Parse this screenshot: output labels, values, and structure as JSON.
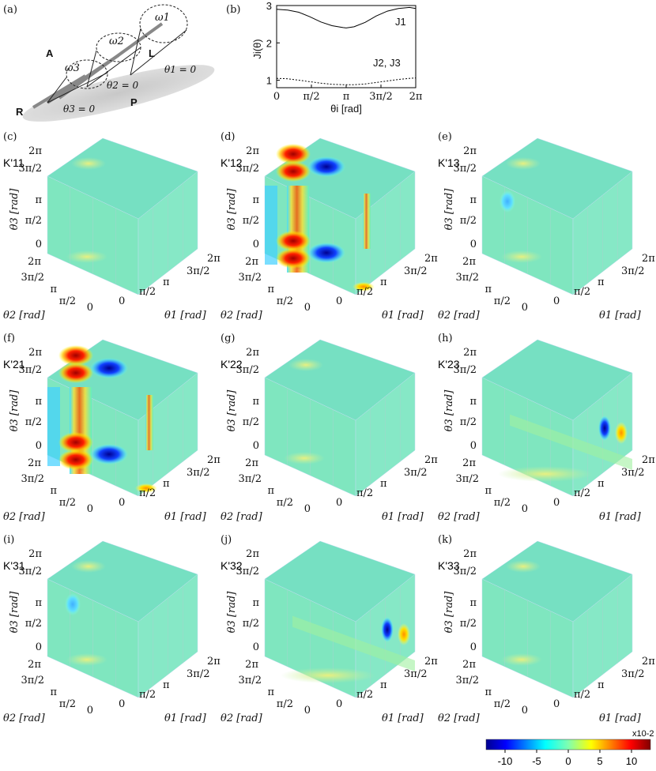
{
  "panel_a": {
    "letter": "(a)",
    "omegas": [
      "ω1",
      "ω2",
      "ω3"
    ],
    "thetas": [
      "θ1 = 0",
      "θ2 = 0",
      "θ3 = 0"
    ],
    "points": [
      "A",
      "L",
      "R",
      "P"
    ]
  },
  "chart_data": [
    {
      "type": "line",
      "panel": "(b)",
      "ylabel": "Ji(θ)",
      "xlabel": "θi [rad]",
      "xticks": [
        "0",
        "π/2",
        "π",
        "3π/2",
        "2π"
      ],
      "yticks": [
        "1",
        "2",
        "3"
      ],
      "xlim": [
        0,
        6.2832
      ],
      "ylim": [
        0.8,
        3.0
      ],
      "series": [
        {
          "name": "J1",
          "style": "solid",
          "x": [
            0,
            0.5,
            1.0,
            1.5,
            2.0,
            2.5,
            3.0,
            3.1416,
            3.5,
            4.0,
            4.5,
            5.0,
            5.5,
            6.0,
            6.2832
          ],
          "values": [
            2.9,
            2.88,
            2.82,
            2.7,
            2.56,
            2.46,
            2.41,
            2.4,
            2.43,
            2.55,
            2.72,
            2.85,
            2.92,
            2.95,
            2.92
          ]
        },
        {
          "name": "J2, J3",
          "style": "dotted",
          "x": [
            0,
            0.5,
            1.0,
            1.5,
            2.0,
            2.5,
            3.0,
            3.1416,
            3.5,
            4.0,
            4.5,
            5.0,
            5.5,
            6.0,
            6.2832
          ],
          "values": [
            1.05,
            1.04,
            1.0,
            0.96,
            0.92,
            0.89,
            0.88,
            0.88,
            0.88,
            0.9,
            0.94,
            0.98,
            1.02,
            1.05,
            1.06
          ]
        }
      ]
    },
    {
      "type": "heatmap",
      "colorbar": {
        "ticks": [
          "-10",
          "-5",
          "0",
          "5",
          "10"
        ],
        "exponent": "x10-2",
        "range": [
          -13,
          13
        ]
      },
      "axes": {
        "theta1": "θ1 [rad]",
        "theta2": "θ2 [rad]",
        "theta3": "θ3 [rad]",
        "ticks": [
          "0",
          "π/2",
          "π",
          "3π/2",
          "2π"
        ]
      },
      "panels": [
        {
          "letter": "(c)",
          "k": "K'11",
          "intensity": "weak"
        },
        {
          "letter": "(d)",
          "k": "K'12",
          "intensity": "strong"
        },
        {
          "letter": "(e)",
          "k": "K'13",
          "intensity": "weak"
        },
        {
          "letter": "(f)",
          "k": "K'21",
          "intensity": "strong"
        },
        {
          "letter": "(g)",
          "k": "K'22",
          "intensity": "weak"
        },
        {
          "letter": "(h)",
          "k": "K'23",
          "intensity": "medium"
        },
        {
          "letter": "(i)",
          "k": "K'31",
          "intensity": "weak"
        },
        {
          "letter": "(j)",
          "k": "K'32",
          "intensity": "medium"
        },
        {
          "letter": "(k)",
          "k": "K'33",
          "intensity": "weak"
        }
      ]
    }
  ],
  "colors": {
    "base": "#7fe6bf",
    "red": "#d01010",
    "blue": "#1030d0",
    "yellow": "#f5e030",
    "orange": "#f08010"
  }
}
